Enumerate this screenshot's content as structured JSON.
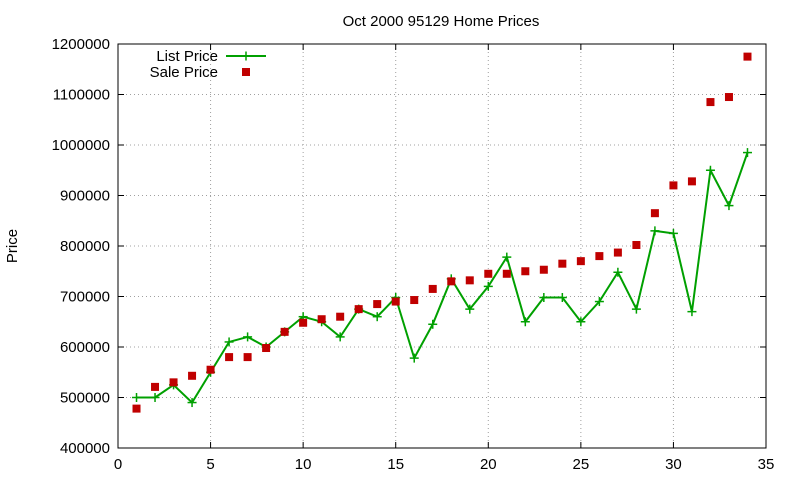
{
  "chart_data": {
    "type": "line",
    "title": "Oct 2000 95129 Home Prices",
    "xlabel": "",
    "ylabel": "Price",
    "xlim": [
      0,
      35
    ],
    "ylim": [
      400000,
      1200000
    ],
    "x_ticks": [
      0,
      5,
      10,
      15,
      20,
      25,
      30,
      35
    ],
    "y_ticks": [
      400000,
      500000,
      600000,
      700000,
      800000,
      900000,
      1000000,
      1100000,
      1200000
    ],
    "grid": true,
    "legend_position": "top-left",
    "series": [
      {
        "name": "List Price",
        "style": "line-with-plus-markers",
        "color": "#00a000",
        "x": [
          1,
          2,
          3,
          4,
          5,
          6,
          7,
          8,
          9,
          10,
          11,
          12,
          13,
          14,
          15,
          16,
          17,
          18,
          19,
          20,
          21,
          22,
          23,
          24,
          25,
          26,
          27,
          28,
          29,
          30,
          31,
          32,
          33,
          34
        ],
        "y": [
          500000,
          500000,
          525000,
          490000,
          550000,
          610000,
          620000,
          600000,
          630000,
          660000,
          650000,
          620000,
          675000,
          660000,
          698000,
          578000,
          645000,
          735000,
          675000,
          720000,
          778000,
          650000,
          698000,
          698000,
          650000,
          690000,
          748000,
          675000,
          830000,
          825000,
          670000,
          950000,
          880000,
          985000
        ]
      },
      {
        "name": "Sale Price",
        "style": "square-markers",
        "color": "#c00000",
        "x": [
          1,
          2,
          3,
          4,
          5,
          6,
          7,
          8,
          9,
          10,
          11,
          12,
          13,
          14,
          15,
          16,
          17,
          18,
          19,
          20,
          21,
          22,
          23,
          24,
          25,
          26,
          27,
          28,
          29,
          30,
          31,
          32,
          33,
          34
        ],
        "y": [
          478000,
          521000,
          530000,
          543000,
          555000,
          580000,
          580000,
          598000,
          630000,
          648000,
          655000,
          660000,
          675000,
          685000,
          690000,
          693000,
          715000,
          730000,
          732000,
          745000,
          745000,
          750000,
          753000,
          765000,
          770000,
          780000,
          787000,
          802000,
          865000,
          920000,
          928000,
          1085000,
          1095000,
          1175000
        ]
      }
    ]
  }
}
